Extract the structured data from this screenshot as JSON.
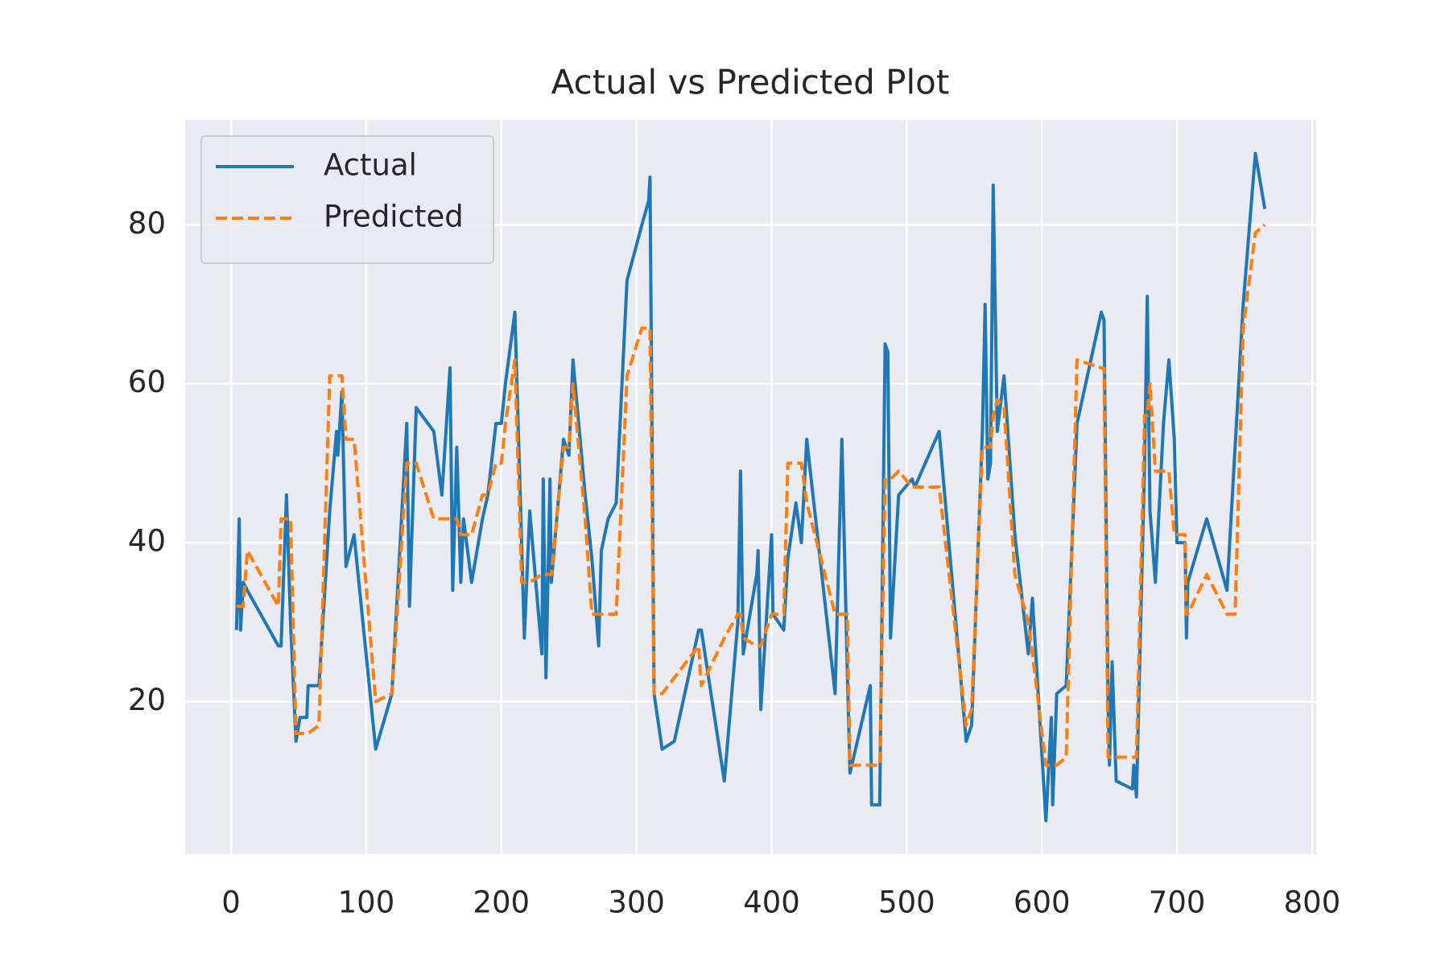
{
  "chart_data": {
    "type": "line",
    "title": "Actual vs Predicted Plot",
    "x": [
      4,
      6,
      7,
      9,
      12,
      35,
      37,
      41,
      44,
      48,
      51,
      56,
      57,
      65,
      73,
      78,
      79,
      82,
      85,
      91,
      107,
      119,
      130,
      132,
      137,
      150,
      156,
      162,
      164,
      167,
      170,
      172,
      178,
      186,
      190,
      196,
      200,
      203,
      210,
      215,
      217,
      221,
      230,
      231,
      233,
      236,
      237,
      246,
      250,
      253,
      262,
      267,
      272,
      274,
      279,
      285,
      293,
      304,
      309,
      310,
      313,
      319,
      328,
      346,
      348,
      365,
      375,
      377,
      379,
      389,
      390,
      392,
      400,
      401,
      409,
      412,
      418,
      422,
      426,
      447,
      452,
      456,
      458,
      473,
      474,
      480,
      484,
      486,
      488,
      494,
      504,
      506,
      524,
      544,
      548,
      556,
      558,
      560,
      562,
      564,
      567,
      572,
      580,
      590,
      593,
      603,
      607,
      608,
      611,
      618,
      626,
      644,
      646,
      649,
      650,
      652,
      655,
      667,
      668,
      670,
      676,
      678,
      680,
      684,
      690,
      694,
      698,
      700,
      706,
      707,
      708,
      722,
      737,
      743,
      749,
      758,
      765
    ],
    "series": [
      {
        "name": "Actual",
        "color": "#1f77b4",
        "linestyle": "solid",
        "values": [
          29,
          43,
          29,
          35,
          34,
          27,
          27,
          46,
          30,
          15,
          18,
          18,
          22,
          22,
          44,
          54,
          51,
          59,
          37,
          41,
          14,
          21,
          55,
          32,
          57,
          54,
          46,
          62,
          34,
          52,
          35,
          43,
          35,
          43,
          46,
          55,
          55,
          60,
          69,
          40,
          28,
          44,
          26,
          48,
          23,
          48,
          35,
          53,
          51,
          63,
          46,
          38,
          27,
          39,
          43,
          45,
          73,
          80,
          83,
          86,
          21,
          14,
          15,
          29,
          29,
          10,
          30,
          49,
          26,
          36,
          39,
          19,
          41,
          31,
          29,
          38,
          45,
          40,
          53,
          21,
          53,
          24,
          11,
          22,
          7,
          7,
          65,
          64,
          28,
          46,
          48,
          47,
          54,
          15,
          17,
          54,
          70,
          48,
          50,
          85,
          54,
          61,
          41,
          26,
          33,
          5,
          18,
          7,
          21,
          22,
          55,
          69,
          68,
          20,
          12,
          25,
          10,
          9,
          12,
          8,
          50,
          71,
          44,
          35,
          55,
          63,
          53,
          40,
          40,
          28,
          35,
          43,
          34,
          52,
          70,
          89,
          82
        ]
      },
      {
        "name": "Predicted",
        "color": "#ff7f0e",
        "linestyle": "dashed",
        "values": [
          32,
          32,
          32,
          32,
          39,
          32,
          43,
          43,
          43,
          16,
          16,
          16,
          16,
          17,
          61,
          61,
          61,
          61,
          53,
          53,
          20,
          21,
          50,
          50,
          50,
          43,
          43,
          43,
          43,
          43,
          41,
          41,
          41,
          46,
          46,
          50,
          50,
          55,
          63,
          35,
          35,
          35,
          36,
          36,
          36,
          36,
          36,
          52,
          52,
          60,
          43,
          31,
          31,
          31,
          31,
          31,
          61,
          67,
          67,
          67,
          21,
          21,
          23,
          27,
          22,
          28,
          31,
          31,
          28,
          27,
          27,
          27,
          31,
          31,
          31,
          50,
          50,
          50,
          45,
          31,
          31,
          31,
          12,
          12,
          12,
          12,
          48,
          48,
          48,
          49,
          47,
          47,
          47,
          17,
          19,
          52,
          52,
          52,
          52,
          56,
          58,
          57,
          36,
          30,
          26,
          12,
          12,
          12,
          12,
          13,
          63,
          62,
          62,
          13,
          13,
          13,
          13,
          13,
          13,
          13,
          56,
          56,
          60,
          49,
          49,
          49,
          41,
          41,
          41,
          31,
          31,
          36,
          31,
          31,
          67,
          79,
          80
        ]
      }
    ],
    "xlim": [
      -34,
      803
    ],
    "ylim": [
      0.8,
      93.2
    ],
    "xticks": [
      0,
      100,
      200,
      300,
      400,
      500,
      600,
      700,
      800
    ],
    "yticks": [
      20,
      40,
      60,
      80
    ],
    "grid": true,
    "legend": "upper left"
  }
}
